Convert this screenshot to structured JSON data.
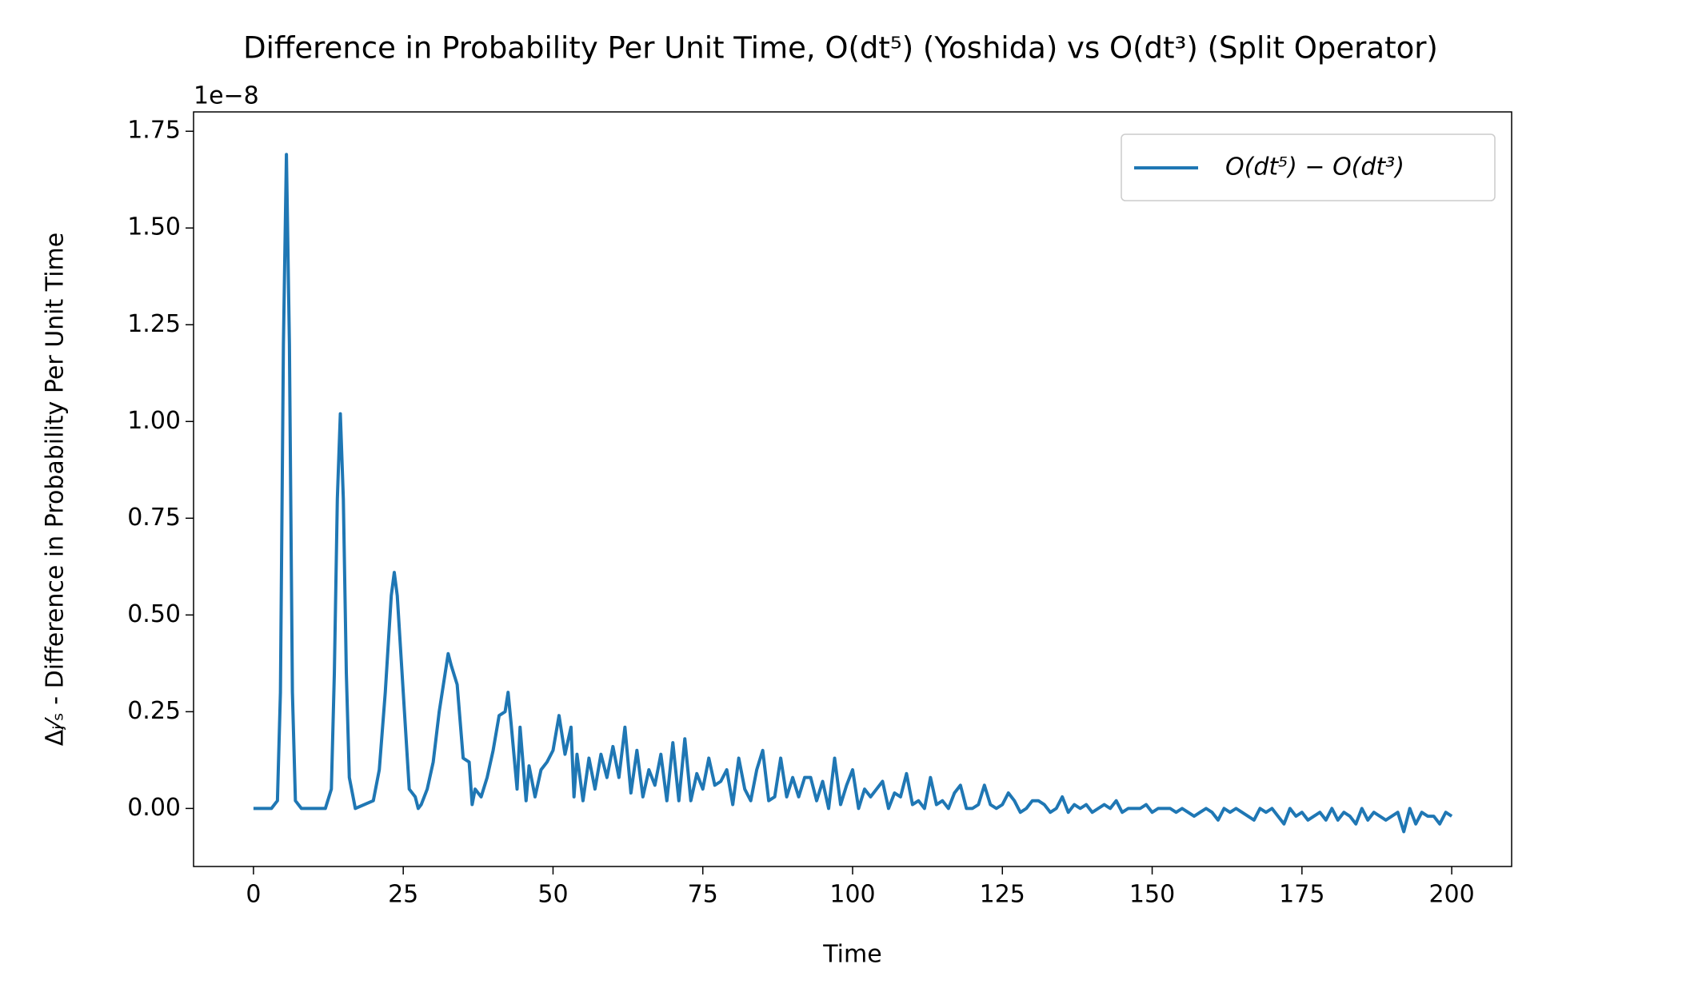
{
  "chart_data": {
    "type": "line",
    "title": "Difference in Probability Per Unit Time, O(dt⁵) (Yoshida) vs O(dt³) (Split Operator)",
    "xlabel": "Time",
    "ylabel": "Δⱼ⁄ₛ - Difference in Probability Per Unit Time",
    "y_offset_text": "1e−8",
    "legend": "upper right",
    "xlim": [
      -10,
      210
    ],
    "xticks": [
      0,
      25,
      50,
      75,
      100,
      125,
      150,
      175,
      200
    ],
    "ylim": [
      -0.15,
      1.8
    ],
    "yticks": [
      {
        "value": 0,
        "label": "0.00"
      },
      0.25,
      {
        "value": 0.5,
        "label": "0.50"
      },
      0.75,
      {
        "value": 1,
        "label": "1.00"
      },
      1.25,
      {
        "value": 1.5,
        "label": "1.50"
      },
      1.75
    ],
    "x": [
      0,
      3,
      4,
      4.5,
      5,
      5.5,
      6,
      6.5,
      7,
      8,
      12,
      13,
      13.5,
      14,
      14.5,
      15,
      15.5,
      16,
      17,
      20,
      21,
      22,
      23,
      23.5,
      24,
      25,
      26,
      27,
      27.5,
      28,
      29,
      30,
      31,
      32,
      32.5,
      33,
      34,
      35,
      36,
      36.5,
      37,
      38,
      39,
      40,
      41,
      42,
      42.5,
      43,
      44,
      44.5,
      45.5,
      46,
      47,
      48,
      49,
      50,
      51,
      52,
      53,
      53.5,
      54,
      55,
      56,
      57,
      58,
      59,
      60,
      61,
      62,
      63,
      64,
      65,
      66,
      67,
      68,
      69,
      70,
      71,
      72,
      73,
      74,
      75,
      76,
      77,
      78,
      79,
      80,
      81,
      82,
      83,
      84,
      85,
      86,
      87,
      88,
      89,
      90,
      91,
      92,
      93,
      94,
      95,
      96,
      97,
      98,
      99,
      100,
      101,
      102,
      103,
      104,
      105,
      106,
      107,
      108,
      109,
      110,
      111,
      112,
      113,
      114,
      115,
      116,
      117,
      118,
      119,
      120,
      121,
      122,
      123,
      124,
      125,
      126,
      127,
      128,
      129,
      130,
      131,
      132,
      133,
      134,
      135,
      136,
      137,
      138,
      139,
      140,
      141,
      142,
      143,
      144,
      145,
      146,
      147,
      148,
      149,
      150,
      151,
      152,
      153,
      154,
      155,
      156,
      157,
      158,
      159,
      160,
      161,
      162,
      163,
      164,
      165,
      166,
      167,
      168,
      169,
      170,
      171,
      172,
      173,
      174,
      175,
      176,
      177,
      178,
      179,
      180,
      181,
      182,
      183,
      184,
      185,
      186,
      187,
      188,
      189,
      190,
      191,
      192,
      193,
      194,
      195,
      196,
      197,
      198,
      199,
      200
    ],
    "series": [
      {
        "name": "O(dt⁵) − O(dt³)",
        "color": "#1f77b4",
        "values": [
          0,
          0,
          0.02,
          0.3,
          1.2,
          1.69,
          1.2,
          0.3,
          0.02,
          0,
          0,
          0.05,
          0.35,
          0.8,
          1.02,
          0.8,
          0.35,
          0.08,
          0,
          0.02,
          0.1,
          0.3,
          0.55,
          0.61,
          0.55,
          0.3,
          0.05,
          0.03,
          0,
          0.01,
          0.05,
          0.12,
          0.25,
          0.35,
          0.4,
          0.37,
          0.32,
          0.13,
          0.12,
          0.01,
          0.05,
          0.03,
          0.08,
          0.15,
          0.24,
          0.25,
          0.3,
          0.22,
          0.05,
          0.21,
          0.02,
          0.11,
          0.03,
          0.1,
          0.12,
          0.15,
          0.24,
          0.14,
          0.21,
          0.03,
          0.14,
          0.02,
          0.13,
          0.05,
          0.14,
          0.08,
          0.16,
          0.08,
          0.21,
          0.04,
          0.15,
          0.03,
          0.1,
          0.06,
          0.14,
          0.02,
          0.17,
          0.02,
          0.18,
          0.02,
          0.09,
          0.05,
          0.13,
          0.06,
          0.07,
          0.1,
          0.01,
          0.13,
          0.05,
          0.02,
          0.1,
          0.15,
          0.02,
          0.03,
          0.13,
          0.03,
          0.08,
          0.03,
          0.08,
          0.08,
          0.02,
          0.07,
          0,
          0.13,
          0.01,
          0.06,
          0.1,
          0,
          0.05,
          0.03,
          0.05,
          0.07,
          0,
          0.04,
          0.03,
          0.09,
          0.01,
          0.02,
          0,
          0.08,
          0.01,
          0.02,
          0,
          0.04,
          0.06,
          0,
          0,
          0.01,
          0.06,
          0.01,
          0,
          0.01,
          0.04,
          0.02,
          -0.01,
          0,
          0.02,
          0.02,
          0.01,
          -0.01,
          0,
          0.03,
          -0.01,
          0.01,
          0,
          0.01,
          -0.01,
          0,
          0.01,
          0,
          0.02,
          -0.01,
          0,
          0,
          0,
          0.01,
          -0.01,
          0,
          0,
          0,
          -0.01,
          0,
          -0.01,
          -0.02,
          -0.01,
          0,
          -0.01,
          -0.03,
          0,
          -0.01,
          0,
          -0.01,
          -0.02,
          -0.03,
          0,
          -0.01,
          0,
          -0.02,
          -0.04,
          0,
          -0.02,
          -0.01,
          -0.03,
          -0.02,
          -0.01,
          -0.03,
          0,
          -0.03,
          -0.01,
          -0.02,
          -0.04,
          0,
          -0.03,
          -0.01,
          -0.02,
          -0.03,
          -0.02,
          -0.01,
          -0.06,
          0,
          -0.04,
          -0.01,
          -0.02,
          -0.02,
          -0.04,
          -0.01,
          -0.02
        ]
      }
    ]
  }
}
